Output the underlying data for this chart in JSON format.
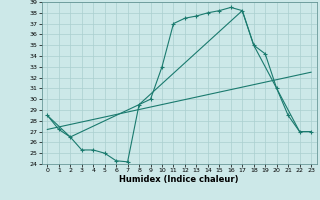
{
  "xlabel": "Humidex (Indice chaleur)",
  "bg_color": "#cce8e8",
  "line_color": "#1a7a6e",
  "grid_color": "#aacfcf",
  "xlim": [
    -0.5,
    23.5
  ],
  "ylim": [
    24,
    39
  ],
  "yticks": [
    24,
    25,
    26,
    27,
    28,
    29,
    30,
    31,
    32,
    33,
    34,
    35,
    36,
    37,
    38,
    39
  ],
  "xticks": [
    0,
    1,
    2,
    3,
    4,
    5,
    6,
    7,
    8,
    9,
    10,
    11,
    12,
    13,
    14,
    15,
    16,
    17,
    18,
    19,
    20,
    21,
    22,
    23
  ],
  "line1_x": [
    0,
    1,
    2,
    3,
    4,
    5,
    6,
    7,
    8,
    9,
    10,
    11,
    12,
    13,
    14,
    15,
    16,
    17,
    18,
    19,
    20,
    21,
    22,
    23
  ],
  "line1_y": [
    28.5,
    27.2,
    26.5,
    25.3,
    25.3,
    25.0,
    24.3,
    24.2,
    29.5,
    30.0,
    33.0,
    37.0,
    37.5,
    37.7,
    38.0,
    38.2,
    38.5,
    38.2,
    35.0,
    34.2,
    31.0,
    28.5,
    27.0,
    27.0
  ],
  "line2_x": [
    0,
    2,
    8,
    17,
    18,
    22,
    23
  ],
  "line2_y": [
    28.5,
    26.5,
    29.5,
    38.2,
    35.0,
    27.0,
    27.0
  ],
  "line3_x": [
    0,
    23
  ],
  "line3_y": [
    27.2,
    32.5
  ]
}
